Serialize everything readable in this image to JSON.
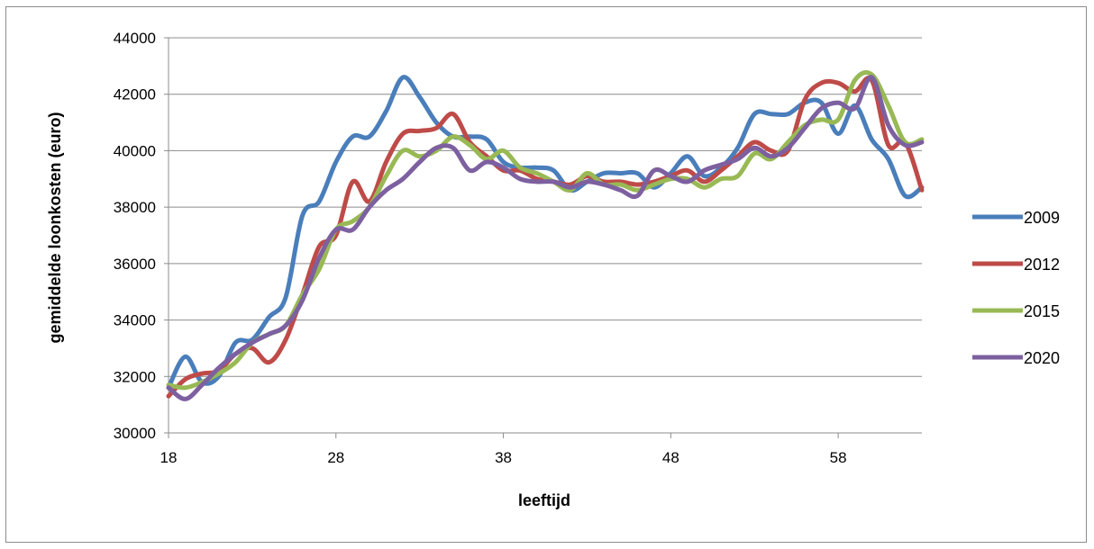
{
  "chart_data": {
    "type": "line",
    "title": "",
    "xlabel": "leeftijd",
    "ylabel": "gemiddelde loonkosten (euro)",
    "xlim": [
      18,
      63
    ],
    "ylim": [
      30000,
      44000
    ],
    "xticks": [
      18,
      28,
      38,
      48,
      58
    ],
    "yticks": [
      30000,
      32000,
      34000,
      36000,
      38000,
      40000,
      42000,
      44000
    ],
    "grid": "horizontal",
    "legend_position": "right",
    "x": [
      18,
      19,
      20,
      21,
      22,
      23,
      24,
      25,
      26,
      27,
      28,
      29,
      30,
      31,
      32,
      33,
      34,
      35,
      36,
      37,
      38,
      39,
      40,
      41,
      42,
      43,
      44,
      45,
      46,
      47,
      48,
      49,
      50,
      51,
      52,
      53,
      54,
      55,
      56,
      57,
      58,
      59,
      60,
      61,
      62,
      63
    ],
    "series": [
      {
        "name": "2009",
        "color": "#4a7ebb",
        "values": [
          31600,
          32700,
          31800,
          32000,
          33200,
          33300,
          34100,
          34800,
          37700,
          38200,
          39600,
          40500,
          40500,
          41400,
          42600,
          41900,
          41000,
          40500,
          40500,
          40400,
          39600,
          39400,
          39400,
          39300,
          38600,
          38900,
          39200,
          39200,
          39200,
          38700,
          39200,
          39800,
          39100,
          39400,
          40100,
          41300,
          41300,
          41300,
          41700,
          41700,
          40600,
          41600,
          40400,
          39700,
          38400,
          38700
        ]
      },
      {
        "name": "2012",
        "color": "#be4b48",
        "values": [
          31300,
          31900,
          32100,
          32200,
          32800,
          33000,
          32500,
          33300,
          34900,
          36600,
          37000,
          38900,
          38200,
          39600,
          40600,
          40700,
          40800,
          41300,
          40300,
          39800,
          39300,
          39300,
          39000,
          38900,
          38800,
          39100,
          38900,
          38900,
          38800,
          38900,
          39100,
          39300,
          38900,
          39300,
          39800,
          40300,
          40000,
          40000,
          41800,
          42400,
          42400,
          42100,
          42500,
          40200,
          40300,
          38600
        ]
      },
      {
        "name": "2015",
        "color": "#98b954",
        "values": [
          31700,
          31600,
          31800,
          32100,
          32500,
          33200,
          33500,
          33800,
          34900,
          35800,
          37200,
          37500,
          38000,
          39100,
          40000,
          39800,
          40000,
          40500,
          40200,
          39700,
          40000,
          39400,
          39200,
          38900,
          38600,
          39200,
          38800,
          38800,
          38600,
          38800,
          39000,
          39000,
          38700,
          39000,
          39100,
          39900,
          39700,
          40300,
          40900,
          41100,
          41100,
          42500,
          42700,
          41600,
          40300,
          40400
        ]
      },
      {
        "name": "2020",
        "color": "#7d60a0",
        "values": [
          31600,
          31200,
          31700,
          32300,
          32800,
          33200,
          33500,
          33800,
          34700,
          36200,
          37200,
          37200,
          38000,
          38600,
          39000,
          39600,
          40100,
          40100,
          39300,
          39600,
          39400,
          39000,
          38900,
          38900,
          38700,
          38900,
          38800,
          38600,
          38400,
          39300,
          39100,
          38900,
          39300,
          39500,
          39700,
          40100,
          39800,
          40100,
          40800,
          41500,
          41700,
          41500,
          42600,
          40900,
          40200,
          40300
        ]
      }
    ]
  }
}
